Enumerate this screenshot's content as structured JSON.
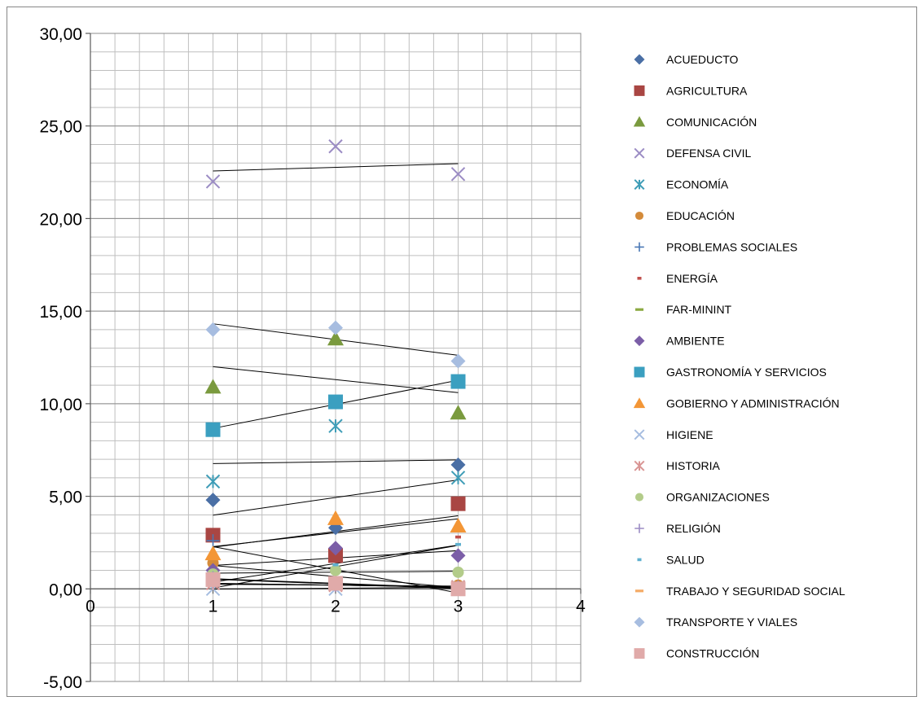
{
  "chart_data": {
    "type": "scatter",
    "title": "",
    "xlabel": "",
    "ylabel": "",
    "xlim": [
      0,
      4
    ],
    "ylim": [
      -5,
      30
    ],
    "x_ticks": [
      0,
      1,
      2,
      3,
      4
    ],
    "y_ticks": [
      -5,
      0,
      5,
      10,
      15,
      20,
      25,
      30
    ],
    "x_tick_labels": [
      "0",
      "1",
      "2",
      "3",
      "4"
    ],
    "y_tick_labels": [
      "-5,00",
      "0,00",
      "5,00",
      "10,00",
      "15,00",
      "20,00",
      "25,00",
      "30,00"
    ],
    "grid": true,
    "legend_position": "right",
    "trendlines": true,
    "x": [
      1,
      2,
      3
    ],
    "series": [
      {
        "name": "ACUEDUCTO",
        "marker": "diamond",
        "color": "#4a6fa5",
        "values": [
          4.8,
          3.3,
          6.7
        ]
      },
      {
        "name": "AGRICULTURA",
        "marker": "square",
        "color": "#a94643",
        "values": [
          2.9,
          1.8,
          4.6
        ]
      },
      {
        "name": "COMUNICACIÓN",
        "marker": "triangle",
        "color": "#7a9a3e",
        "values": [
          10.9,
          13.5,
          9.5
        ]
      },
      {
        "name": "DEFENSA CIVIL",
        "marker": "x",
        "color": "#9b8cc4",
        "values": [
          22.0,
          23.9,
          22.4
        ]
      },
      {
        "name": "ECONOMÍA",
        "marker": "asterisk",
        "color": "#3f9db7",
        "values": [
          5.8,
          8.8,
          6.0
        ]
      },
      {
        "name": "EDUCACIÓN",
        "marker": "circle",
        "color": "#d48b3a",
        "values": [
          1.4,
          0.4,
          0.2
        ]
      },
      {
        "name": "PROBLEMAS SOCIALES",
        "marker": "plus",
        "color": "#4a78b5",
        "values": [
          2.6,
          0.4,
          0.1
        ]
      },
      {
        "name": "ENERGÍA",
        "marker": "dash",
        "color": "#c0504d",
        "values": [
          0.5,
          0.3,
          2.8
        ]
      },
      {
        "name": "FAR-MININT",
        "marker": "longdash",
        "color": "#8caa42",
        "values": [
          0.3,
          0.2,
          0.1
        ]
      },
      {
        "name": "AMBIENTE",
        "marker": "diamond",
        "color": "#7b5ea7",
        "values": [
          1.0,
          2.2,
          1.8
        ]
      },
      {
        "name": "GASTRONOMÍA Y SERVICIOS",
        "marker": "square",
        "color": "#3b9fc0",
        "values": [
          8.6,
          10.1,
          11.2
        ]
      },
      {
        "name": "GOBIERNO Y ADMINISTRACIÓN",
        "marker": "triangle",
        "color": "#f39636",
        "values": [
          1.9,
          3.8,
          3.4
        ]
      },
      {
        "name": "HIGIENE",
        "marker": "x",
        "color": "#a6bde0",
        "values": [
          0.0,
          0.0,
          0.1
        ]
      },
      {
        "name": "HISTORIA",
        "marker": "asterisk",
        "color": "#d99594",
        "values": [
          0.3,
          0.2,
          0.1
        ]
      },
      {
        "name": "ORGANIZACIONES",
        "marker": "circle",
        "color": "#b3cc8a",
        "values": [
          0.8,
          1.0,
          0.9
        ]
      },
      {
        "name": "RELIGIÓN",
        "marker": "plus",
        "color": "#9b8cc4",
        "values": [
          0.6,
          0.2,
          0.1
        ]
      },
      {
        "name": "SALUD",
        "marker": "dash",
        "color": "#5fb0cf",
        "values": [
          0.4,
          1.3,
          2.4
        ]
      },
      {
        "name": "TRABAJO Y SEGURIDAD SOCIAL",
        "marker": "longdash",
        "color": "#f5ab66",
        "values": [
          0.2,
          0.3,
          0.1
        ]
      },
      {
        "name": "TRANSPORTE Y VIALES",
        "marker": "diamond",
        "color": "#a7bde0",
        "values": [
          14.0,
          14.1,
          12.3
        ]
      },
      {
        "name": "CONSTRUCCIÓN",
        "marker": "square",
        "color": "#e0aaa9",
        "values": [
          0.5,
          0.3,
          0.0
        ]
      }
    ]
  }
}
